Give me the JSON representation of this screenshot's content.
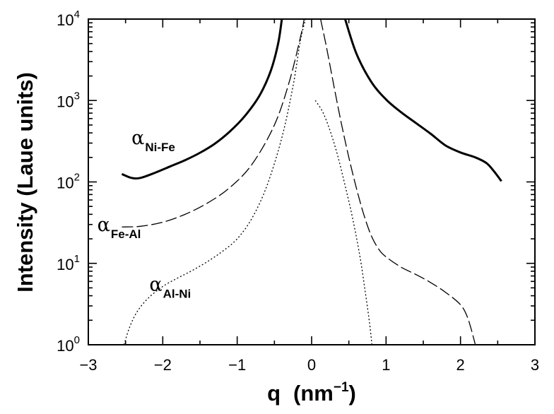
{
  "chart_data": {
    "type": "line",
    "title": "",
    "xlabel": "q",
    "xlabel_unit": "(nm",
    "xlabel_unit_exponent": "−1",
    "xlabel_unit_close": ")",
    "ylabel": "Intensity (Laue units)",
    "xlim": [
      -3,
      3
    ],
    "ylim": [
      1,
      10000
    ],
    "yscale": "log",
    "grid": false,
    "legend": "none",
    "x_ticks": [
      {
        "value": -3,
        "label": "−3"
      },
      {
        "value": -2,
        "label": "−2"
      },
      {
        "value": -1,
        "label": "−1"
      },
      {
        "value": 0,
        "label": "0"
      },
      {
        "value": 1,
        "label": "1"
      },
      {
        "value": 2,
        "label": "2"
      },
      {
        "value": 3,
        "label": "3"
      }
    ],
    "y_ticks": [
      {
        "value": 1,
        "base": "10",
        "exp": "0"
      },
      {
        "value": 10,
        "base": "10",
        "exp": "1"
      },
      {
        "value": 100,
        "base": "10",
        "exp": "2"
      },
      {
        "value": 1000,
        "base": "10",
        "exp": "3"
      },
      {
        "value": 10000,
        "base": "10",
        "exp": "4"
      }
    ],
    "series": [
      {
        "symbol": "α",
        "subscript": "Ni-Fe",
        "style": "solid",
        "segments": [
          [
            [
              -2.55,
              125
            ],
            [
              -2.42,
              112
            ],
            [
              -2.3,
              112
            ],
            [
              -2.1,
              130
            ],
            [
              -1.9,
              155
            ],
            [
              -1.7,
              185
            ],
            [
              -1.5,
              228
            ],
            [
              -1.3,
              295
            ],
            [
              -1.1,
              415
            ],
            [
              -0.9,
              640
            ],
            [
              -0.7,
              1150
            ],
            [
              -0.55,
              2300
            ],
            [
              -0.45,
              5000
            ],
            [
              -0.4,
              10000
            ]
          ],
          [
            [
              0.45,
              10000
            ],
            [
              0.6,
              3800
            ],
            [
              0.8,
              1700
            ],
            [
              1.0,
              1030
            ],
            [
              1.2,
              720
            ],
            [
              1.4,
              530
            ],
            [
              1.6,
              390
            ],
            [
              1.8,
              280
            ],
            [
              2.0,
              230
            ],
            [
              2.2,
              200
            ],
            [
              2.35,
              170
            ],
            [
              2.45,
              135
            ],
            [
              2.55,
              102
            ]
          ]
        ]
      },
      {
        "symbol": "α",
        "subscript": "Fe-Al",
        "style": "dashed",
        "segments": [
          [
            [
              -2.55,
              28
            ],
            [
              -2.3,
              28.5
            ],
            [
              -2.0,
              32
            ],
            [
              -1.7,
              40
            ],
            [
              -1.4,
              55
            ],
            [
              -1.1,
              85
            ],
            [
              -0.8,
              165
            ],
            [
              -0.5,
              500
            ],
            [
              -0.3,
              1700
            ],
            [
              -0.15,
              6000
            ],
            [
              -0.1,
              10000
            ]
          ],
          [
            [
              0.12,
              10000
            ],
            [
              0.2,
              4500
            ],
            [
              0.3,
              1500
            ],
            [
              0.4,
              520
            ],
            [
              0.5,
              200
            ],
            [
              0.6,
              85
            ],
            [
              0.7,
              40
            ],
            [
              0.8,
              22
            ],
            [
              0.9,
              15
            ],
            [
              1.0,
              12
            ],
            [
              1.2,
              9
            ],
            [
              1.4,
              7.3
            ],
            [
              1.6,
              5.8
            ],
            [
              1.8,
              4.4
            ],
            [
              2.0,
              3.1
            ],
            [
              2.1,
              2.1
            ],
            [
              2.2,
              1.0
            ]
          ]
        ]
      },
      {
        "symbol": "α",
        "subscript": "Al-Ni",
        "style": "dotted",
        "segments": [
          [
            [
              -2.52,
              1.0
            ],
            [
              -2.45,
              1.6
            ],
            [
              -2.35,
              2.5
            ],
            [
              -2.2,
              3.7
            ],
            [
              -2.0,
              5.2
            ],
            [
              -1.8,
              6.6
            ],
            [
              -1.6,
              8.2
            ],
            [
              -1.4,
              10.5
            ],
            [
              -1.2,
              14
            ],
            [
              -1.0,
              20
            ],
            [
              -0.8,
              36
            ],
            [
              -0.6,
              90
            ],
            [
              -0.4,
              350
            ],
            [
              -0.25,
              1500
            ],
            [
              -0.15,
              5500
            ],
            [
              -0.08,
              10000
            ]
          ],
          [
            [
              0.05,
              1000
            ],
            [
              0.15,
              720
            ],
            [
              0.25,
              420
            ],
            [
              0.35,
              210
            ],
            [
              0.45,
              90
            ],
            [
              0.55,
              36
            ],
            [
              0.65,
              12
            ],
            [
              0.72,
              4.5
            ],
            [
              0.78,
              1.8
            ],
            [
              0.81,
              1.0
            ]
          ]
        ]
      }
    ],
    "annotations": [
      {
        "x": -2.42,
        "y": 290,
        "symbol": "α",
        "subscript": "Ni-Fe"
      },
      {
        "x": -2.88,
        "y": 25,
        "symbol": "α",
        "subscript": "Fe-Al"
      },
      {
        "x": -2.18,
        "y": 4.6,
        "symbol": "α",
        "subscript": "Al-Ni"
      }
    ]
  }
}
